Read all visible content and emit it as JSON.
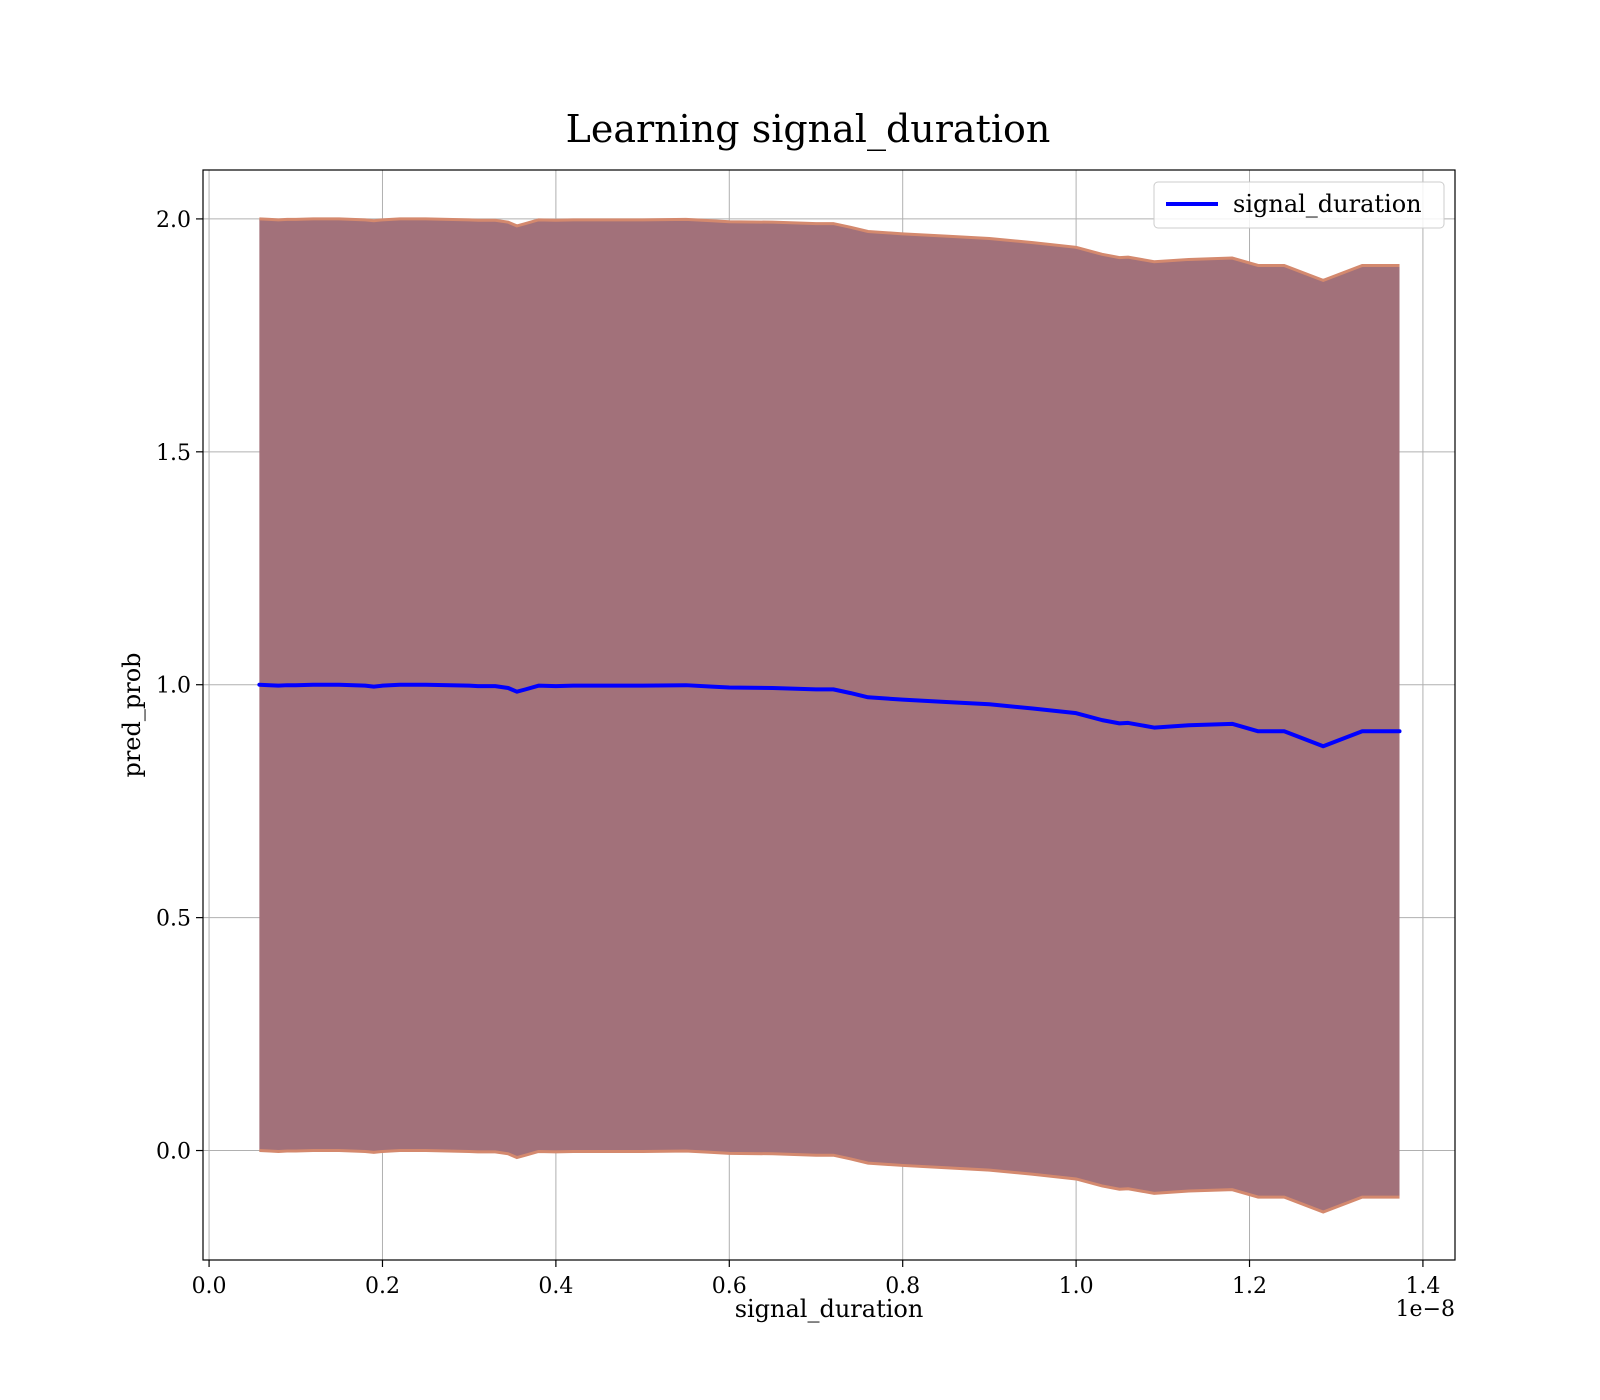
{
  "chart_data": {
    "type": "line",
    "title": "Learning signal_duration",
    "xlabel": "signal_duration",
    "ylabel": "pred_prob",
    "x_offset_label": "1e−8",
    "x_scale": 1e-08,
    "xlim": [
      -0.007,
      1.437
    ],
    "ylim": [
      -0.235,
      2.105
    ],
    "xticks": [
      0.0,
      0.2,
      0.4,
      0.6,
      0.8,
      1.0,
      1.2,
      1.4
    ],
    "xtick_labels": [
      "0.0",
      "0.2",
      "0.4",
      "0.6",
      "0.8",
      "1.0",
      "1.2",
      "1.4"
    ],
    "yticks": [
      0.0,
      0.5,
      1.0,
      1.5,
      2.0
    ],
    "ytick_labels": [
      "0.0",
      "0.5",
      "1.0",
      "1.5",
      "2.0"
    ],
    "grid": true,
    "legend_position": "top-right",
    "colors": {
      "line": "#0000ff",
      "band_fill": "#a2717a",
      "band_edge": "#d4896e"
    },
    "series": [
      {
        "name": "signal_duration",
        "x": [
          0.058,
          0.07,
          0.08,
          0.09,
          0.1,
          0.12,
          0.15,
          0.18,
          0.19,
          0.2,
          0.22,
          0.25,
          0.3,
          0.31,
          0.33,
          0.345,
          0.355,
          0.365,
          0.38,
          0.4,
          0.42,
          0.45,
          0.5,
          0.55,
          0.58,
          0.6,
          0.65,
          0.7,
          0.72,
          0.74,
          0.76,
          0.8,
          0.85,
          0.9,
          0.95,
          1.0,
          1.03,
          1.05,
          1.06,
          1.09,
          1.13,
          1.18,
          1.21,
          1.24,
          1.285,
          1.33,
          1.373
        ],
        "y": [
          1.0,
          0.999,
          0.998,
          0.999,
          0.999,
          1.0,
          1.0,
          0.998,
          0.996,
          0.998,
          1.0,
          1.0,
          0.998,
          0.997,
          0.997,
          0.993,
          0.985,
          0.99,
          0.998,
          0.997,
          0.998,
          0.998,
          0.998,
          0.999,
          0.996,
          0.994,
          0.993,
          0.99,
          0.99,
          0.982,
          0.973,
          0.968,
          0.963,
          0.958,
          0.949,
          0.939,
          0.924,
          0.917,
          0.918,
          0.908,
          0.913,
          0.916,
          0.9,
          0.9,
          0.868,
          0.9,
          0.9
        ],
        "band_upper": [
          2.0,
          1.999,
          1.998,
          1.999,
          1.999,
          2.0,
          2.0,
          1.998,
          1.996,
          1.998,
          2.0,
          2.0,
          1.998,
          1.997,
          1.997,
          1.993,
          1.985,
          1.99,
          1.998,
          1.997,
          1.998,
          1.998,
          1.998,
          1.999,
          1.996,
          1.994,
          1.993,
          1.99,
          1.99,
          1.982,
          1.973,
          1.968,
          1.963,
          1.958,
          1.949,
          1.939,
          1.924,
          1.917,
          1.918,
          1.908,
          1.913,
          1.916,
          1.9,
          1.9,
          1.868,
          1.9,
          1.9
        ],
        "band_lower": [
          0.0,
          -0.001,
          -0.002,
          -0.001,
          -0.001,
          0.0,
          0.0,
          -0.002,
          -0.004,
          -0.002,
          0.0,
          0.0,
          -0.002,
          -0.003,
          -0.003,
          -0.007,
          -0.015,
          -0.01,
          -0.002,
          -0.003,
          -0.002,
          -0.002,
          -0.002,
          -0.001,
          -0.004,
          -0.006,
          -0.007,
          -0.01,
          -0.01,
          -0.018,
          -0.027,
          -0.032,
          -0.037,
          -0.042,
          -0.051,
          -0.061,
          -0.076,
          -0.083,
          -0.082,
          -0.092,
          -0.087,
          -0.084,
          -0.1,
          -0.1,
          -0.132,
          -0.1,
          -0.1
        ]
      }
    ]
  }
}
